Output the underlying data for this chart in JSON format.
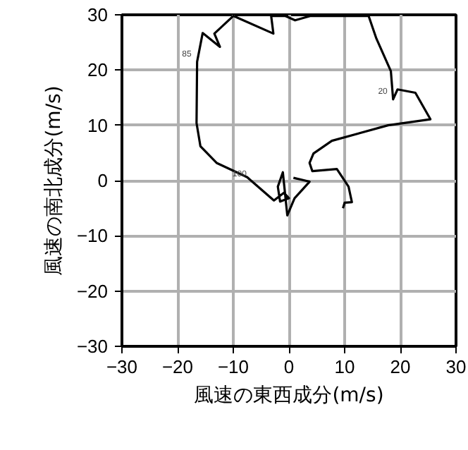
{
  "chart_data": {
    "type": "line",
    "xlabel": "風速の東西成分(m/s)",
    "ylabel": "風速の南北成分(m/s)",
    "x": [
      9.7,
      10,
      11.3,
      10.7,
      8.6,
      4.2,
      3.7,
      4.4,
      7.7,
      17.8,
      25.4,
      22.7,
      19.5,
      18.7,
      18.3,
      15.7,
      14.3,
      9.8,
      3.9,
      1.1,
      -0.7,
      -3.2,
      -2.8,
      -10,
      -13.4,
      -12.4,
      -15.5,
      -16.5,
      -16.6,
      -15.9,
      -13,
      -7.5,
      -6.6,
      -2.7,
      -0.9,
      0,
      -1.6,
      -2.0,
      -1.1,
      -0.3,
      1.0,
      3.7,
      0.8
    ],
    "series": [
      {
        "color": "#000000",
        "values": [
          -5.0,
          -4,
          -3.9,
          -1.1,
          2.1,
          1.7,
          3.2,
          4.9,
          7.2,
          10,
          11.1,
          15.9,
          16.5,
          14.7,
          19.8,
          25.7,
          29.8,
          29.8,
          29.8,
          29,
          29.8,
          29.8,
          26.6,
          29.8,
          26.6,
          24.2,
          26.7,
          21.5,
          10.4,
          6.2,
          3.2,
          0.6,
          -0.2,
          -3.6,
          -2.2,
          -3.2,
          -3.8,
          -1.1,
          1.5,
          -6.3,
          -3.2,
          -0.2,
          0.5
        ]
      }
    ],
    "annotations": [
      {
        "text": "85",
        "x": -16.5,
        "y": 21.5
      },
      {
        "text": "20",
        "x": 18.7,
        "y": 14.7
      },
      {
        "text": "100",
        "x": -6.6,
        "y": -0.2
      }
    ],
    "xlim": [
      -30,
      30
    ],
    "ylim": [
      -30,
      30
    ],
    "xticks": [
      -30,
      -20,
      -10,
      0,
      10,
      20,
      30
    ],
    "yticks": [
      -30,
      -20,
      -10,
      0,
      10,
      20,
      30
    ],
    "grid": true,
    "line_style": "solid"
  }
}
